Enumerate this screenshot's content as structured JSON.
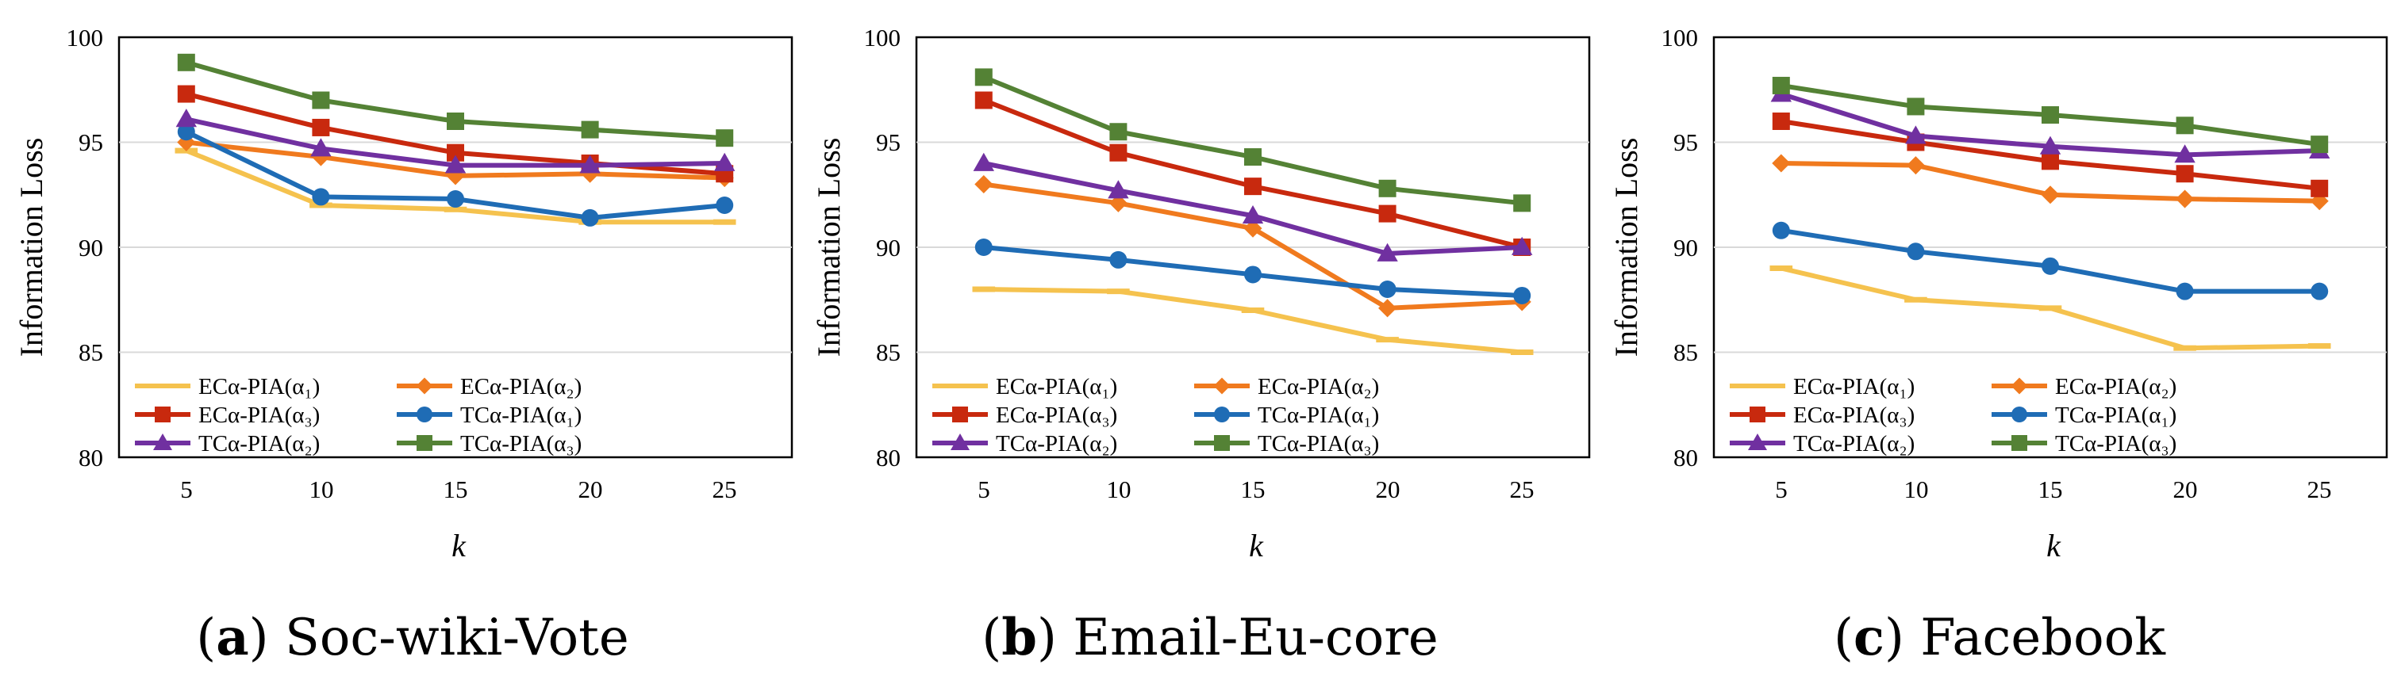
{
  "colors": {
    "s1": "#F5C24E",
    "s2": "#F07A1E",
    "s3": "#C8290E",
    "s4": "#1F6CB5",
    "s5": "#7030A0",
    "s6": "#548235",
    "grid": "#d9d9d9"
  },
  "chart_data": [
    {
      "type": "line",
      "caption_letter": "a",
      "caption_text": "Soc-wiki-Vote",
      "xlabel": "k",
      "ylabel": "Information Loss",
      "ylim": [
        80,
        100
      ],
      "yticks": [
        "80",
        "85",
        "90",
        "95",
        "100"
      ],
      "categories": [
        "5",
        "10",
        "15",
        "20",
        "25"
      ],
      "legend": "bottom-left, two columns",
      "series": [
        {
          "name": "ECα-PIA(α₁)",
          "marker": "dash",
          "color_key": "s1",
          "values": [
            94.6,
            92.0,
            91.8,
            91.2,
            91.2
          ]
        },
        {
          "name": "ECα-PIA(α₂)",
          "marker": "diamond",
          "color_key": "s2",
          "values": [
            95.0,
            94.3,
            93.4,
            93.5,
            93.3
          ]
        },
        {
          "name": "ECα-PIA(α₃)",
          "marker": "square",
          "color_key": "s3",
          "values": [
            97.3,
            95.7,
            94.5,
            94.0,
            93.5
          ]
        },
        {
          "name": "TCα-PIA(α₁)",
          "marker": "circle",
          "color_key": "s4",
          "values": [
            95.5,
            92.4,
            92.3,
            91.4,
            92.0
          ]
        },
        {
          "name": "TCα-PIA(α₂)",
          "marker": "triangle",
          "color_key": "s5",
          "values": [
            96.1,
            94.7,
            93.9,
            93.9,
            94.0
          ]
        },
        {
          "name": "TCα-PIA(α₃)",
          "marker": "square",
          "color_key": "s6",
          "values": [
            98.8,
            97.0,
            96.0,
            95.6,
            95.2
          ]
        }
      ]
    },
    {
      "type": "line",
      "caption_letter": "b",
      "caption_text": "Email-Eu-core",
      "xlabel": "k",
      "ylabel": "Information Loss",
      "ylim": [
        80,
        100
      ],
      "yticks": [
        "80",
        "85",
        "90",
        "95",
        "100"
      ],
      "categories": [
        "5",
        "10",
        "15",
        "20",
        "25"
      ],
      "legend": "bottom-left, two columns",
      "series": [
        {
          "name": "ECα-PIA(α₁)",
          "marker": "dash",
          "color_key": "s1",
          "values": [
            88.0,
            87.9,
            87.0,
            85.6,
            85.0
          ]
        },
        {
          "name": "ECα-PIA(α₂)",
          "marker": "diamond",
          "color_key": "s2",
          "values": [
            93.0,
            92.1,
            90.9,
            87.1,
            87.4
          ]
        },
        {
          "name": "ECα-PIA(α₃)",
          "marker": "square",
          "color_key": "s3",
          "values": [
            97.0,
            94.5,
            92.9,
            91.6,
            90.0
          ]
        },
        {
          "name": "TCα-PIA(α₁)",
          "marker": "circle",
          "color_key": "s4",
          "values": [
            90.0,
            89.4,
            88.7,
            88.0,
            87.7
          ]
        },
        {
          "name": "TCα-PIA(α₂)",
          "marker": "triangle",
          "color_key": "s5",
          "values": [
            94.0,
            92.7,
            91.5,
            89.7,
            90.0
          ]
        },
        {
          "name": "TCα-PIA(α₃)",
          "marker": "square",
          "color_key": "s6",
          "values": [
            98.1,
            95.5,
            94.3,
            92.8,
            92.1
          ]
        }
      ]
    },
    {
      "type": "line",
      "caption_letter": "c",
      "caption_text": "Facebook",
      "xlabel": "k",
      "ylabel": "Information Loss",
      "ylim": [
        80,
        100
      ],
      "yticks": [
        "80",
        "85",
        "90",
        "95",
        "100"
      ],
      "categories": [
        "5",
        "10",
        "15",
        "20",
        "25"
      ],
      "legend": "bottom-left, two columns",
      "series": [
        {
          "name": "ECα-PIA(α₁)",
          "marker": "dash",
          "color_key": "s1",
          "values": [
            89.0,
            87.5,
            87.1,
            85.2,
            85.3
          ]
        },
        {
          "name": "ECα-PIA(α₂)",
          "marker": "diamond",
          "color_key": "s2",
          "values": [
            94.0,
            93.9,
            92.5,
            92.3,
            92.2
          ]
        },
        {
          "name": "ECα-PIA(α₃)",
          "marker": "square",
          "color_key": "s3",
          "values": [
            96.0,
            95.0,
            94.1,
            93.5,
            92.8
          ]
        },
        {
          "name": "TCα-PIA(α₁)",
          "marker": "circle",
          "color_key": "s4",
          "values": [
            90.8,
            89.8,
            89.1,
            87.9,
            87.9
          ]
        },
        {
          "name": "TCα-PIA(α₂)",
          "marker": "triangle",
          "color_key": "s5",
          "values": [
            97.3,
            95.3,
            94.8,
            94.4,
            94.6
          ]
        },
        {
          "name": "TCα-PIA(α₃)",
          "marker": "square",
          "color_key": "s6",
          "values": [
            97.7,
            96.7,
            96.3,
            95.8,
            94.9
          ]
        }
      ]
    }
  ]
}
